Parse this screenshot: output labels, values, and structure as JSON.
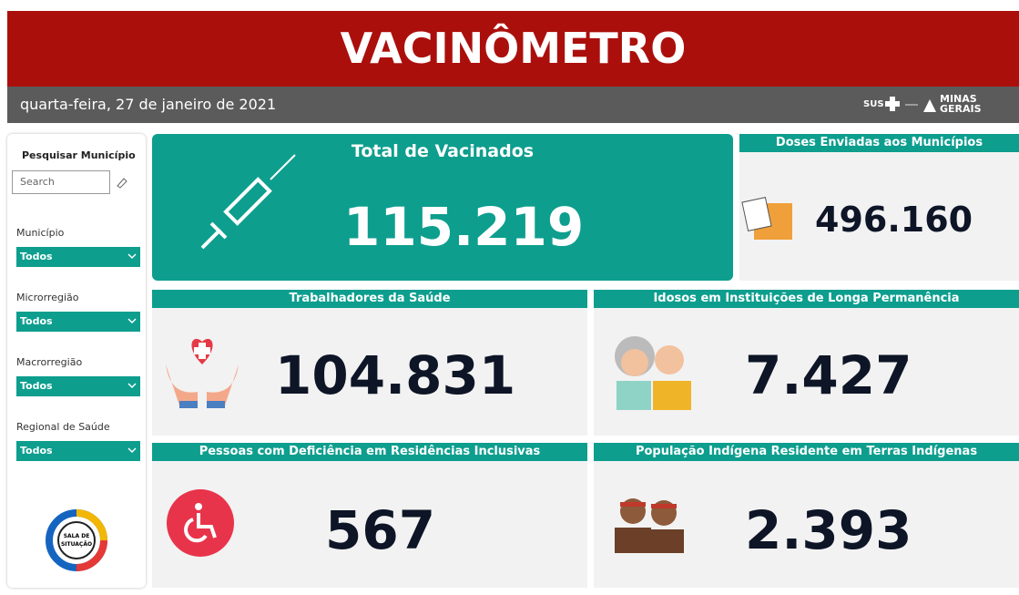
{
  "header": {
    "title": "VACINÔMETRO",
    "date": "quarta-feira, 27 de janeiro de 2021",
    "logos": [
      "SUS",
      "MINAS",
      "GERAIS"
    ]
  },
  "sidebar": {
    "search_title": "Pesquisar Município",
    "search_placeholder": "Search",
    "filters": [
      {
        "label": "Município",
        "value": "Todos"
      },
      {
        "label": "Microrregião",
        "value": "Todos"
      },
      {
        "label": "Macrorregião",
        "value": "Todos"
      },
      {
        "label": "Regional de Saúde",
        "value": "Todos"
      }
    ],
    "logo": [
      "SALA DE",
      "SITUAÇÃO"
    ]
  },
  "cards": [
    {
      "title": "Total de Vacinados",
      "value": "115.219"
    },
    {
      "title": "Doses Enviadas aos Municípios",
      "value": "496.160"
    },
    {
      "title": "Trabalhadores da Saúde",
      "value": "104.831"
    },
    {
      "title": "Idosos em Instituições de Longa Permanência",
      "value": "7.427"
    },
    {
      "title": "Pessoas com Deficiência em Residências Inclusivas",
      "value": "567"
    },
    {
      "title": "População Indígena Residente em Terras Indígenas",
      "value": "2.393"
    }
  ]
}
